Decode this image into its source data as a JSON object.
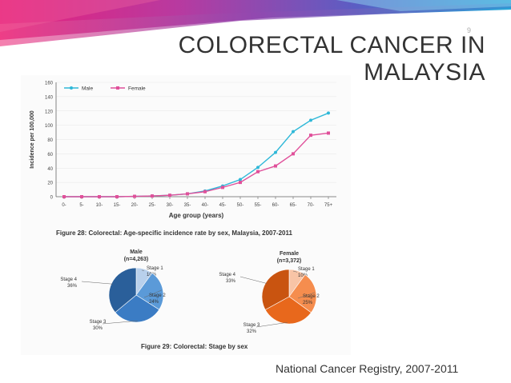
{
  "slide": {
    "title_line1": "COLORECTAL CANCER IN",
    "title_line2": "MALAYSIA",
    "slide_number": "9",
    "source": "National Cancer Registry, 2007-2011"
  },
  "colors": {
    "male": "#2fb8d8",
    "female": "#e0509a",
    "banner": [
      "#e0257a",
      "#a23aa6",
      "#4a62c4",
      "#2aa6d6"
    ]
  },
  "chart_data": [
    {
      "type": "line",
      "ylabel": "Incidence per 100,000",
      "xlabel": "Age group (years)",
      "ylim": [
        0,
        160
      ],
      "yticks": [
        0,
        20,
        40,
        60,
        80,
        100,
        120,
        140,
        160
      ],
      "legend_position": "top-left",
      "categories": [
        "0-",
        "5-",
        "10-",
        "15-",
        "20-",
        "25-",
        "30-",
        "35-",
        "40-",
        "45-",
        "50-",
        "55-",
        "60-",
        "65-",
        "70-",
        "75+"
      ],
      "series": [
        {
          "name": "Male",
          "values": [
            0,
            0,
            0,
            0,
            0.5,
            1,
            2,
            4,
            8,
            15,
            24,
            41,
            62,
            91,
            107,
            117
          ]
        },
        {
          "name": "Female",
          "values": [
            0,
            0,
            0,
            0,
            0.5,
            1,
            2,
            4,
            7,
            13,
            20,
            35,
            43,
            60,
            86,
            89
          ]
        }
      ],
      "caption": "Figure 28: Colorectal: Age-specific incidence rate by sex, Malaysia, 2007-2011"
    },
    {
      "type": "pie",
      "title": "Male",
      "subtitle": "(n=4,263)",
      "slices": [
        {
          "label": "Stage 1",
          "value": 10,
          "text": "10%"
        },
        {
          "label": "Stage 2",
          "value": 24,
          "text": "24%"
        },
        {
          "label": "Stage 3",
          "value": 30,
          "text": "30%"
        },
        {
          "label": "Stage 4",
          "value": 36,
          "text": "36%"
        }
      ],
      "colors": [
        "#b8d0ec",
        "#5b9ad8",
        "#3b7cc4",
        "#2a5f9a"
      ]
    },
    {
      "type": "pie",
      "title": "Female",
      "subtitle": "(n=3,372)",
      "slices": [
        {
          "label": "Stage 1",
          "value": 10,
          "text": "10%"
        },
        {
          "label": "Stage 2",
          "value": 25,
          "text": "25%"
        },
        {
          "label": "Stage 3",
          "value": 32,
          "text": "32%"
        },
        {
          "label": "Stage 4",
          "value": 33,
          "text": "33%"
        }
      ],
      "colors": [
        "#f8c4a6",
        "#f58d4e",
        "#e8681c",
        "#c95410"
      ]
    }
  ],
  "captions": {
    "pie": "Figure 29: Colorectal: Stage by sex"
  }
}
